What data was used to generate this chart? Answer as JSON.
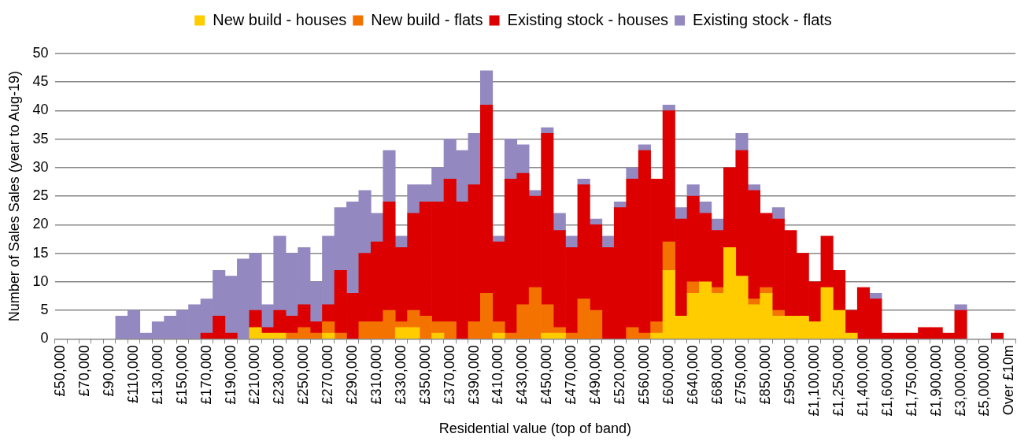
{
  "chart_data": {
    "type": "bar",
    "stacked": true,
    "xlabel": "Residential value (top of band)",
    "ylabel": "Number of Sales Sales (year to Aug-19)",
    "categories": [
      "£50,000",
      null,
      "£70,000",
      null,
      "£90,000",
      null,
      "£110,000",
      null,
      "£130,000",
      null,
      "£150,000",
      null,
      "£170,000",
      null,
      "£190,000",
      null,
      "£210,000",
      null,
      "£230,000",
      null,
      "£250,000",
      null,
      "£270,000",
      null,
      "£290,000",
      null,
      "£310,000",
      null,
      "£330,000",
      null,
      "£350,000",
      null,
      "£370,000",
      null,
      "£390,000",
      null,
      "£410,000",
      null,
      "£430,000",
      null,
      "£450,000",
      null,
      "£470,000",
      null,
      "£490,000",
      null,
      "£520,000",
      null,
      "£560,000",
      null,
      "£600,000",
      null,
      "£640,000",
      null,
      "£680,000",
      null,
      "£750,000",
      null,
      "£850,000",
      null,
      "£950,000",
      null,
      "£1,100,000",
      null,
      "£1,250,000",
      null,
      "£1,400,000",
      null,
      "£1,600,000",
      null,
      "£1,750,000",
      null,
      "£1,900,000",
      null,
      "£3,000,000",
      null,
      "£5,000,000",
      null,
      "Over £10m"
    ],
    "series": [
      {
        "name": "New build - houses",
        "color": "#ffcc00",
        "values": [
          0,
          0,
          0,
          0,
          0,
          0,
          0,
          0,
          0,
          0,
          0,
          0,
          0,
          0,
          0,
          0,
          2,
          1,
          1,
          0,
          0,
          0,
          1,
          0,
          0,
          0,
          0,
          0,
          2,
          2,
          0,
          1,
          0,
          0,
          0,
          0,
          1,
          0,
          0,
          0,
          1,
          1,
          0,
          0,
          0,
          0,
          0,
          0,
          0,
          1,
          12,
          4,
          8,
          10,
          8,
          16,
          11,
          6,
          8,
          4,
          4,
          4,
          3,
          9,
          5,
          1,
          0,
          0,
          0,
          0,
          0,
          0,
          0,
          0,
          0,
          0,
          0,
          0,
          0
        ]
      },
      {
        "name": "New build - flats",
        "color": "#f47300",
        "values": [
          0,
          0,
          0,
          0,
          0,
          0,
          0,
          0,
          0,
          0,
          0,
          0,
          0,
          0,
          0,
          0,
          0,
          0,
          0,
          1,
          2,
          1,
          2,
          1,
          0,
          3,
          3,
          5,
          1,
          3,
          4,
          2,
          3,
          0,
          3,
          8,
          2,
          1,
          6,
          9,
          5,
          1,
          1,
          7,
          5,
          0,
          0,
          2,
          1,
          2,
          5,
          0,
          2,
          0,
          1,
          0,
          0,
          1,
          1,
          1,
          0,
          0,
          0,
          0,
          0,
          0,
          0,
          0,
          0,
          0,
          0,
          0,
          0,
          0,
          0,
          0,
          0,
          0,
          0
        ]
      },
      {
        "name": "Existing stock - houses",
        "color": "#dc0000",
        "values": [
          0,
          0,
          0,
          0,
          0,
          0,
          0,
          0,
          0,
          0,
          0,
          0,
          1,
          4,
          1,
          0,
          3,
          1,
          4,
          3,
          4,
          2,
          3,
          11,
          8,
          12,
          14,
          19,
          13,
          17,
          20,
          21,
          25,
          24,
          24,
          33,
          14,
          27,
          23,
          16,
          30,
          17,
          15,
          20,
          15,
          16,
          23,
          26,
          32,
          25,
          23,
          17,
          15,
          12,
          10,
          14,
          22,
          19,
          13,
          16,
          15,
          11,
          7,
          9,
          7,
          4,
          9,
          7,
          1,
          1,
          1,
          2,
          2,
          1,
          5,
          0,
          0,
          1,
          0
        ]
      },
      {
        "name": "Existing stock - flats",
        "color": "#9488c0",
        "values": [
          0,
          0,
          0,
          0,
          0,
          4,
          5,
          1,
          3,
          4,
          5,
          6,
          6,
          8,
          10,
          14,
          10,
          4,
          13,
          11,
          10,
          7,
          12,
          11,
          16,
          11,
          5,
          9,
          2,
          5,
          3,
          6,
          7,
          9,
          9,
          6,
          1,
          7,
          5,
          1,
          1,
          3,
          2,
          1,
          1,
          2,
          1,
          2,
          1,
          0,
          1,
          2,
          2,
          2,
          2,
          0,
          3,
          1,
          0,
          2,
          0,
          0,
          0,
          0,
          0,
          0,
          0,
          1,
          0,
          0,
          0,
          0,
          0,
          0,
          1,
          0,
          0,
          0,
          0
        ]
      }
    ],
    "ylim": [
      0,
      50
    ],
    "yticks": [
      0,
      5,
      10,
      15,
      20,
      25,
      30,
      35,
      40,
      45,
      50
    ],
    "grid": "y",
    "legend": "top"
  }
}
